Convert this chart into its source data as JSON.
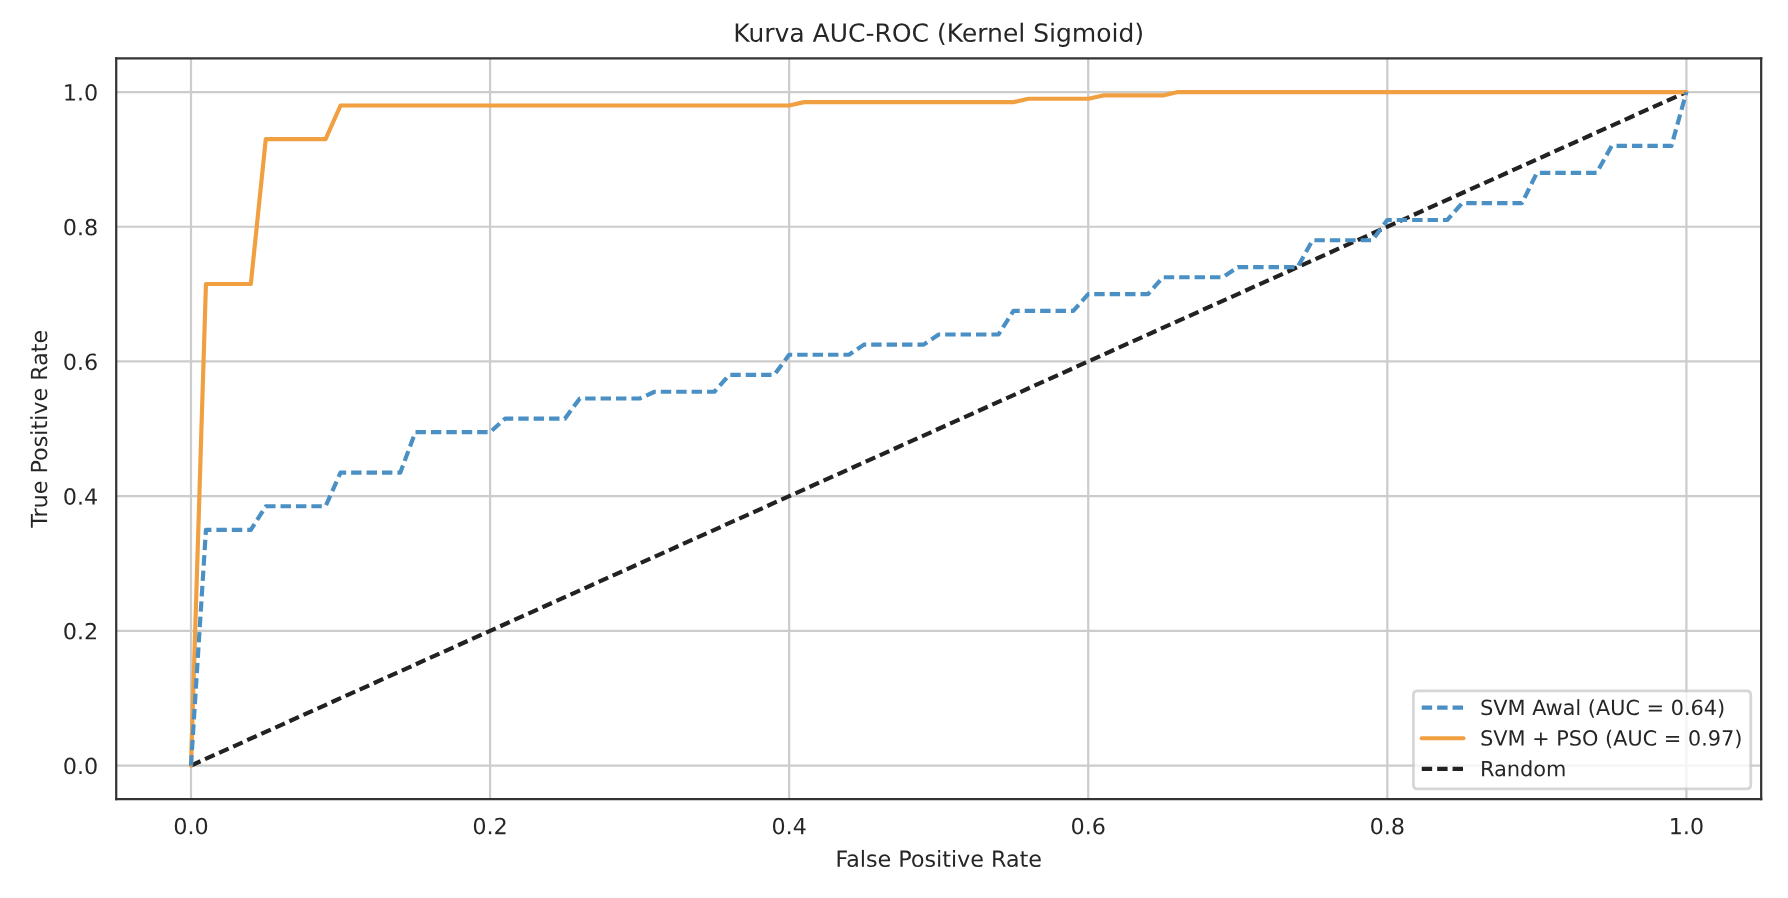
{
  "chart_data": {
    "type": "line",
    "title": "Kurva AUC-ROC (Kernel Sigmoid)",
    "xlabel": "False Positive Rate",
    "ylabel": "True Positive Rate",
    "xlim": [
      -0.05,
      1.05
    ],
    "ylim": [
      -0.05,
      1.05
    ],
    "xticks": [
      {
        "value": 0,
        "label": "0.0"
      },
      {
        "value": 0.2,
        "label": "0.2"
      },
      {
        "value": 0.4,
        "label": "0.4"
      },
      {
        "value": 0.6,
        "label": "0.6"
      },
      {
        "value": 0.8,
        "label": "0.8"
      },
      {
        "value": 1,
        "label": "1.0"
      }
    ],
    "yticks": [
      {
        "value": 0,
        "label": "0.0"
      },
      {
        "value": 0.2,
        "label": "0.2"
      },
      {
        "value": 0.4,
        "label": "0.4"
      },
      {
        "value": 0.6,
        "label": "0.6"
      },
      {
        "value": 0.8,
        "label": "0.8"
      },
      {
        "value": 1,
        "label": "1.0"
      }
    ],
    "grid": true,
    "legend": "bottom right",
    "series": [
      {
        "name": "SVM Awal (AUC = 0.64)",
        "color": "#4a90c4",
        "line_style": "dashed",
        "x": [
          0,
          0.01,
          0.04,
          0.05,
          0.09,
          0.1,
          0.14,
          0.15,
          0.2,
          0.21,
          0.25,
          0.26,
          0.3,
          0.31,
          0.35,
          0.36,
          0.39,
          0.4,
          0.44,
          0.45,
          0.49,
          0.5,
          0.54,
          0.55,
          0.59,
          0.6,
          0.64,
          0.65,
          0.69,
          0.7,
          0.74,
          0.75,
          0.79,
          0.8,
          0.84,
          0.85,
          0.89,
          0.9,
          0.94,
          0.95,
          0.99,
          1.0
        ],
        "values": [
          0,
          0.35,
          0.35,
          0.385,
          0.385,
          0.435,
          0.435,
          0.495,
          0.495,
          0.515,
          0.515,
          0.545,
          0.545,
          0.555,
          0.555,
          0.58,
          0.58,
          0.61,
          0.61,
          0.625,
          0.625,
          0.64,
          0.64,
          0.675,
          0.675,
          0.7,
          0.7,
          0.725,
          0.725,
          0.74,
          0.74,
          0.78,
          0.78,
          0.81,
          0.81,
          0.835,
          0.835,
          0.88,
          0.88,
          0.92,
          0.92,
          1.0
        ]
      },
      {
        "name": "SVM + PSO (AUC = 0.97)",
        "color": "#f0a040",
        "line_style": "solid",
        "x": [
          0,
          0.01,
          0.04,
          0.05,
          0.09,
          0.1,
          0.4,
          0.41,
          0.55,
          0.56,
          0.6,
          0.61,
          0.65,
          0.66,
          1.0
        ],
        "values": [
          0,
          0.715,
          0.715,
          0.93,
          0.93,
          0.98,
          0.98,
          0.985,
          0.985,
          0.99,
          0.99,
          0.995,
          0.995,
          1.0,
          1.0
        ]
      },
      {
        "name": "Random",
        "color": "#222222",
        "line_style": "dashed",
        "x": [
          0,
          1
        ],
        "values": [
          0,
          1
        ]
      }
    ]
  }
}
